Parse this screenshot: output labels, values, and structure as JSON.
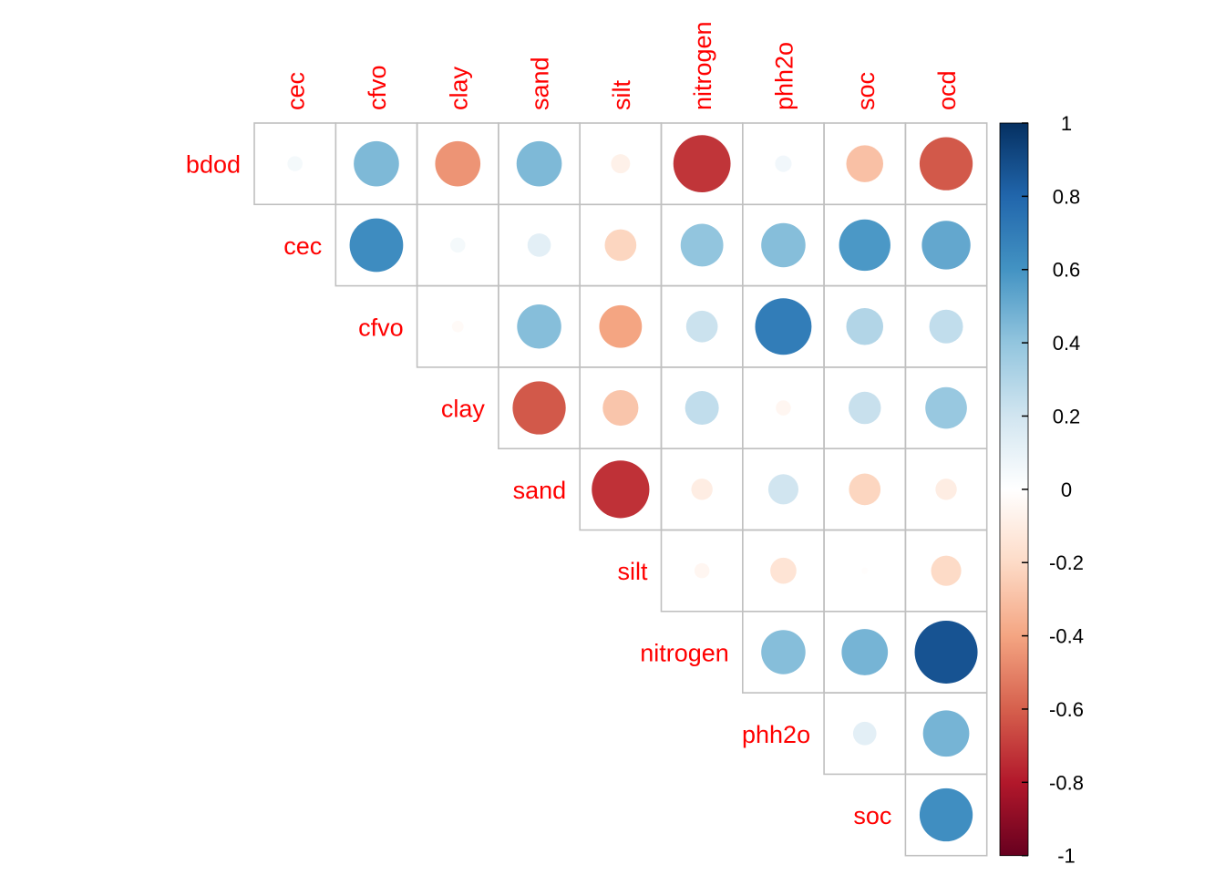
{
  "chart_data": {
    "type": "heatmap",
    "style": "correlation plot, upper triangle, circle glyphs (area ∝ |r|, color by r)",
    "row_labels": [
      "bdod",
      "cec",
      "cfvo",
      "clay",
      "sand",
      "silt",
      "nitrogen",
      "phh2o",
      "soc"
    ],
    "col_labels": [
      "cec",
      "cfvo",
      "clay",
      "sand",
      "silt",
      "nitrogen",
      "phh2o",
      "soc",
      "ocd"
    ],
    "values": [
      [
        0.05,
        0.45,
        -0.45,
        0.45,
        -0.08,
        -0.72,
        0.06,
        -0.3,
        -0.62
      ],
      [
        null,
        0.63,
        0.05,
        0.12,
        -0.22,
        0.4,
        0.43,
        0.58,
        0.52
      ],
      [
        null,
        null,
        -0.03,
        0.43,
        -0.4,
        0.22,
        0.7,
        0.3,
        0.25
      ],
      [
        null,
        null,
        null,
        -0.62,
        -0.28,
        0.25,
        -0.05,
        0.23,
        0.38
      ],
      [
        null,
        null,
        null,
        null,
        -0.73,
        -0.1,
        0.2,
        -0.22,
        -0.1
      ],
      [
        null,
        null,
        null,
        null,
        null,
        -0.05,
        -0.15,
        -0.01,
        -0.2
      ],
      [
        null,
        null,
        null,
        null,
        null,
        null,
        0.43,
        0.47,
        0.87
      ],
      [
        null,
        null,
        null,
        null,
        null,
        null,
        null,
        0.12,
        0.47
      ],
      [
        null,
        null,
        null,
        null,
        null,
        null,
        null,
        null,
        0.62
      ]
    ],
    "colorbar": {
      "range": [
        -1,
        1
      ],
      "ticks": [
        "1",
        "0.8",
        "0.6",
        "0.4",
        "0.2",
        "0",
        "-0.2",
        "-0.4",
        "-0.6",
        "-0.8",
        "-1"
      ],
      "tick_values": [
        1,
        0.8,
        0.6,
        0.4,
        0.2,
        0,
        -0.2,
        -0.4,
        -0.6,
        -0.8,
        -1
      ],
      "palette": [
        "#67001F",
        "#B2182B",
        "#D6604D",
        "#F4A582",
        "#FDDBC7",
        "#FFFFFF",
        "#D1E5F0",
        "#92C5DE",
        "#4393C3",
        "#2166AC",
        "#053061"
      ]
    },
    "colors": {
      "label": "#FF0000",
      "grid": "#C0C0C0",
      "tick_text": "#000000"
    },
    "title": "",
    "xlabel": "",
    "ylabel": ""
  }
}
